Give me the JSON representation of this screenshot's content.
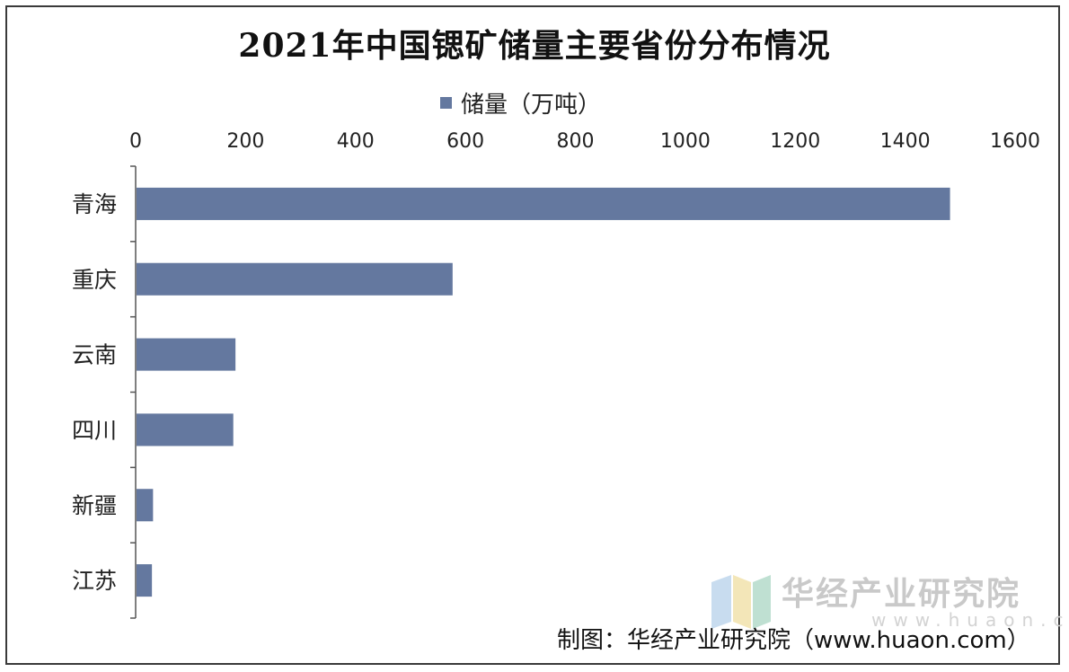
{
  "chart_data": {
    "type": "bar",
    "orientation": "horizontal",
    "title": "2021年中国锶矿储量主要省份分布情况",
    "categories": [
      "青海",
      "重庆",
      "云南",
      "四川",
      "新疆",
      "江苏"
    ],
    "series": [
      {
        "name": "储量（万吨）",
        "values": [
          1480,
          575,
          180,
          176,
          30,
          28
        ],
        "color": "#64789f"
      }
    ],
    "xlim": [
      0,
      1600
    ],
    "xticks": [
      "0",
      "200",
      "400",
      "600",
      "800",
      "1000",
      "1200",
      "1400",
      "1600"
    ],
    "axis_position": "top",
    "legend_position": "top",
    "grid": false
  },
  "watermark": {
    "text": "华经产业研究院",
    "url": "www.huaon.com"
  },
  "source": "制图：华经产业研究院（www.huaon.com）"
}
